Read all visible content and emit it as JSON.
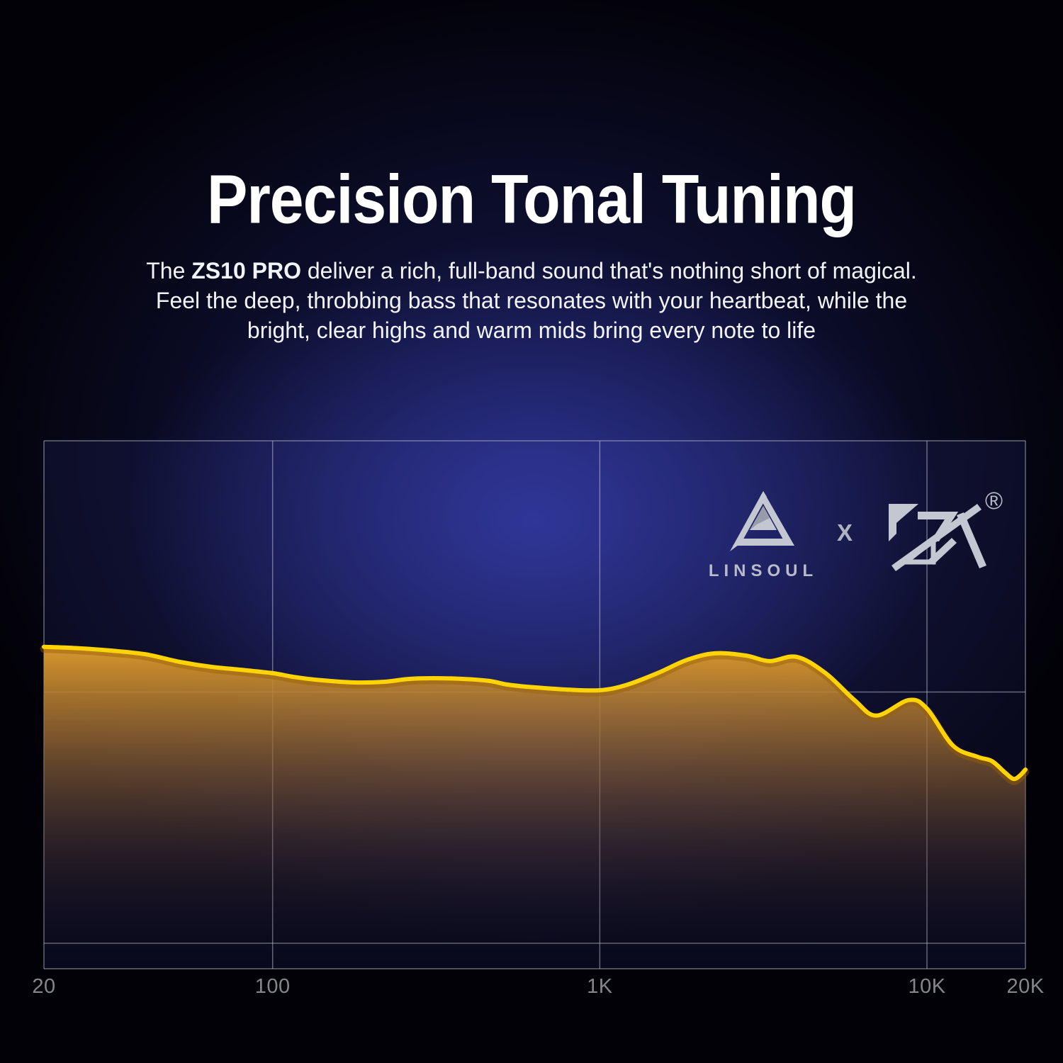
{
  "title": "Precision Tonal Tuning",
  "intro": {
    "line1_pre": "The ",
    "line1_bold": "ZS10 PRO",
    "line1_post": " deliver a rich, full-band sound that's nothing short of magical.",
    "line2": "Feel the deep, throbbing bass that resonates with your heartbeat, while the",
    "line3": "bright, clear highs and warm mids bring every note to life"
  },
  "branding": {
    "linsoul_label": "LINSOUL",
    "collab_separator": "X",
    "registered_mark": "®"
  },
  "colors": {
    "curve_yellow": "#ffd304",
    "fill_amber_top": "#df9f30",
    "grid_line": "rgba(196,200,212,0.5)",
    "tick_label": "#84858d",
    "logo_silver": "#c3c7d2",
    "background_glow_blue": "#2f3596",
    "title_white": "#ffffff"
  },
  "chart_data": {
    "type": "area",
    "title": "",
    "xlabel": "",
    "ylabel": "",
    "x_scale": "log",
    "x_range_hz": [
      20,
      20000
    ],
    "grid": "on",
    "x_ticks": [
      {
        "label": "20",
        "hz": 20
      },
      {
        "label": "100",
        "hz": 100
      },
      {
        "label": "1K",
        "hz": 1000
      },
      {
        "label": "10K",
        "hz": 10000
      },
      {
        "label": "20K",
        "hz": 20000
      }
    ],
    "x_gridlines_hz": [
      100,
      1000,
      10000
    ],
    "y_gridlines_rel_db": [
      10,
      0,
      -10
    ],
    "y_axis_note": "no y-axis labels shown; levels are relative dB estimated from gridlines (10 dB per division, middle gridline = 0)",
    "series": [
      {
        "name": "ZS10 PRO frequency response",
        "points_hz_rel_db": [
          [
            20,
            1.8
          ],
          [
            25,
            1.75
          ],
          [
            32,
            1.65
          ],
          [
            41,
            1.5
          ],
          [
            52,
            1.2
          ],
          [
            65,
            1.0
          ],
          [
            78,
            0.9
          ],
          [
            100,
            0.75
          ],
          [
            116,
            0.6
          ],
          [
            140,
            0.47
          ],
          [
            178,
            0.38
          ],
          [
            220,
            0.41
          ],
          [
            260,
            0.52
          ],
          [
            310,
            0.55
          ],
          [
            385,
            0.52
          ],
          [
            460,
            0.44
          ],
          [
            520,
            0.3
          ],
          [
            600,
            0.21
          ],
          [
            790,
            0.1
          ],
          [
            1000,
            0.07
          ],
          [
            1200,
            0.27
          ],
          [
            1500,
            0.75
          ],
          [
            1850,
            1.28
          ],
          [
            2250,
            1.54
          ],
          [
            2800,
            1.45
          ],
          [
            3300,
            1.23
          ],
          [
            4000,
            1.4
          ],
          [
            4900,
            0.75
          ],
          [
            6000,
            -0.32
          ],
          [
            7000,
            -0.94
          ],
          [
            8800,
            -0.32
          ],
          [
            10000,
            -0.66
          ],
          [
            12000,
            -2.13
          ],
          [
            14300,
            -2.58
          ],
          [
            15800,
            -2.75
          ],
          [
            17300,
            -3.2
          ],
          [
            18400,
            -3.46
          ],
          [
            19300,
            -3.31
          ],
          [
            20000,
            -3.09
          ]
        ]
      }
    ],
    "legend": "off"
  }
}
